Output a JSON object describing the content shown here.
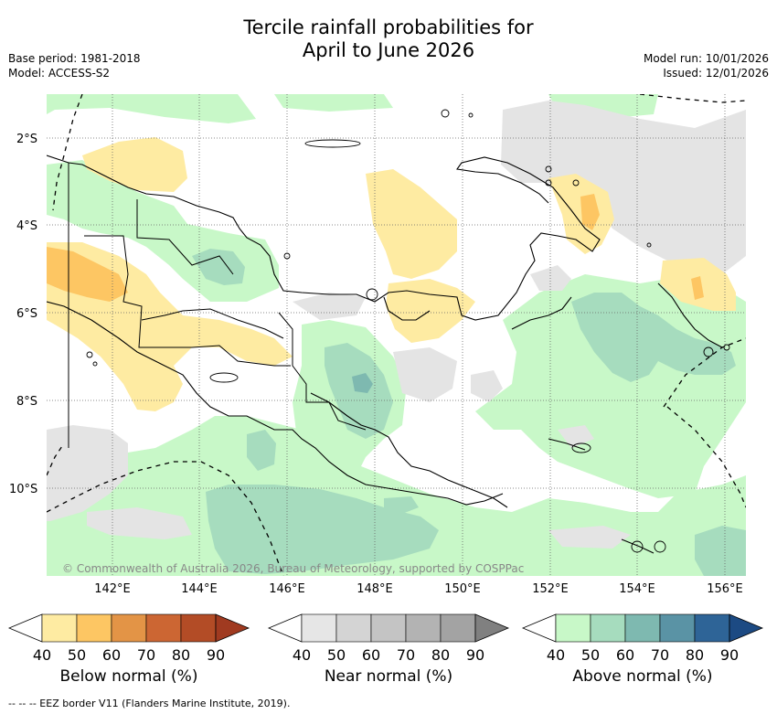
{
  "title_line1": "Tercile rainfall probabilities for",
  "title_line2": "April to June 2026",
  "base_period": "Base period: 1981-2018",
  "model": "Model: ACCESS-S2",
  "model_run": "Model run: 10/01/2026",
  "issued": "Issued: 12/01/2026",
  "credit": "© Commonwealth of Australia 2026, Bureau of Meteorology, supported by COSPPac",
  "lat_labels": [
    "2°S",
    "4°S",
    "6°S",
    "8°S",
    "10°S"
  ],
  "lon_labels": [
    "142°E",
    "144°E",
    "146°E",
    "148°E",
    "150°E",
    "152°E",
    "154°E",
    "156°E"
  ],
  "colorbars": [
    {
      "label": "Below normal (%)",
      "ticks": [
        "40",
        "50",
        "60",
        "70",
        "80",
        "90"
      ],
      "colors": [
        "#ffffff",
        "#feeba2",
        "#fdc663",
        "#e39446",
        "#cc6633",
        "#b34c26",
        "#a03a20"
      ]
    },
    {
      "label": "Near normal (%)",
      "ticks": [
        "40",
        "50",
        "60",
        "70",
        "80",
        "90"
      ],
      "colors": [
        "#ffffff",
        "#e6e6e6",
        "#d4d4d4",
        "#c4c4c4",
        "#b3b3b3",
        "#a3a3a3",
        "#808080"
      ]
    },
    {
      "label": "Above normal (%)",
      "ticks": [
        "40",
        "50",
        "60",
        "70",
        "80",
        "90"
      ],
      "colors": [
        "#ffffff",
        "#c8f8c8",
        "#a6dcbe",
        "#7eb9b0",
        "#5a93a5",
        "#2e6497",
        "#1c4a83"
      ]
    }
  ],
  "footer": "-- -- -- EEZ border V11 (Flanders Marine Institute, 2019)."
}
